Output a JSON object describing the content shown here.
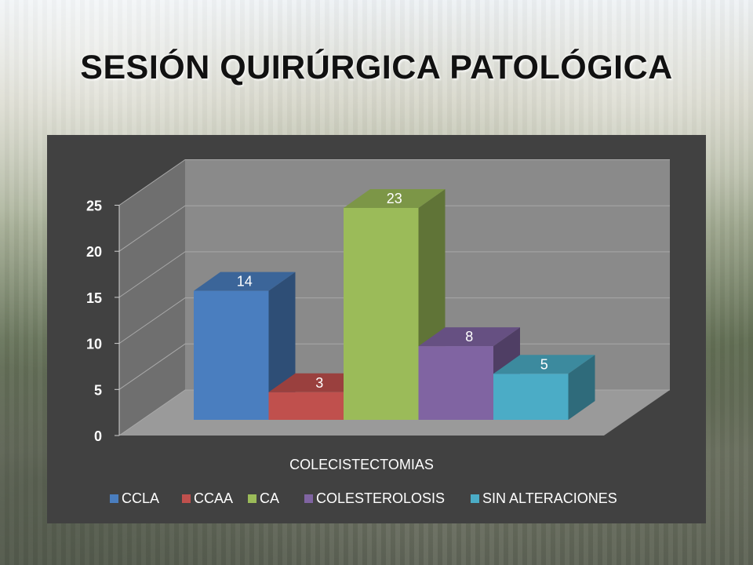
{
  "page": {
    "title": "SESIÓN QUIRÚRGICA PATOLÓGICA"
  },
  "chart_data": {
    "type": "bar",
    "categories": [
      "COLECISTECTOMIAS"
    ],
    "series": [
      {
        "name": "CCLA",
        "values": [
          14
        ],
        "color": "#4a7ebf"
      },
      {
        "name": "CCAA",
        "values": [
          3
        ],
        "color": "#c0504d"
      },
      {
        "name": "CA",
        "values": [
          23
        ],
        "color": "#9bbb59"
      },
      {
        "name": "COLESTEROLOSIS",
        "values": [
          8
        ],
        "color": "#8064a2"
      },
      {
        "name": "SIN ALTERACIONES",
        "values": [
          5
        ],
        "color": "#4bacc6"
      }
    ],
    "data_labels": [
      "14",
      "3",
      "23",
      "8",
      "5"
    ],
    "xlabel": "",
    "ylabel": "",
    "ylim": [
      0,
      25
    ],
    "yticks": [
      "0",
      "5",
      "10",
      "15",
      "20",
      "25"
    ],
    "style": "3d-clustered-column",
    "legend_position": "bottom",
    "grid": true
  }
}
